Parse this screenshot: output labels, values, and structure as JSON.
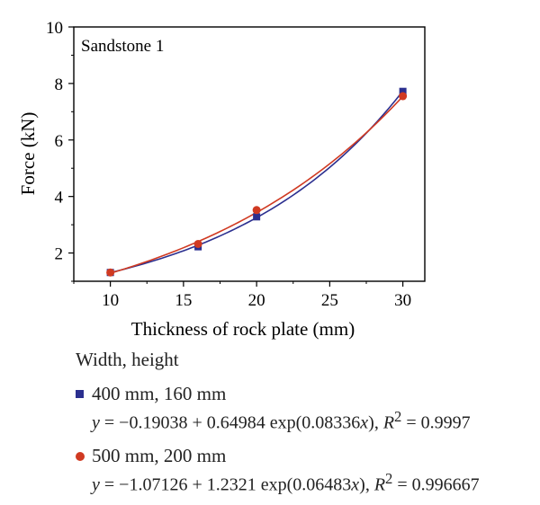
{
  "chart_data": {
    "type": "scatter",
    "annotation": "Sandstone 1",
    "xlabel": "Thickness of rock plate (mm)",
    "ylabel": "Force (kN)",
    "xlim": [
      7.5,
      31.5
    ],
    "ylim": [
      1,
      10
    ],
    "x_ticks": [
      10,
      15,
      20,
      25,
      30
    ],
    "y_ticks": [
      2,
      4,
      6,
      8,
      10
    ],
    "grid": false,
    "legend_title": "Width, height",
    "series": [
      {
        "name": "400 mm, 160 mm",
        "marker": "square",
        "color": "#2b2f8f",
        "x": [
          10,
          16,
          20,
          30
        ],
        "y": [
          1.31,
          2.22,
          3.28,
          7.72
        ],
        "fit": {
          "a": -0.19038,
          "b": 0.64984,
          "c": 0.08336
        },
        "equation": {
          "lhs": "y",
          "rhs": " = −0.19038 + 0.64984 exp(0.08336",
          "var": "x",
          "close": "), ",
          "r2_label": "R",
          "r2_sup": "2",
          "r2_value": " = 0.9997"
        }
      },
      {
        "name": "500 mm, 200 mm",
        "marker": "circle",
        "color": "#d03a22",
        "x": [
          10,
          16,
          20,
          30
        ],
        "y": [
          1.31,
          2.32,
          3.52,
          7.55
        ],
        "fit": {
          "a": -1.07126,
          "b": 1.2321,
          "c": 0.06483
        },
        "equation": {
          "lhs": "y",
          "rhs": " = −1.07126 + 1.2321 exp(0.06483",
          "var": "x",
          "close": "), ",
          "r2_label": "R",
          "r2_sup": "2",
          "r2_value": " = 0.996667"
        }
      }
    ]
  }
}
